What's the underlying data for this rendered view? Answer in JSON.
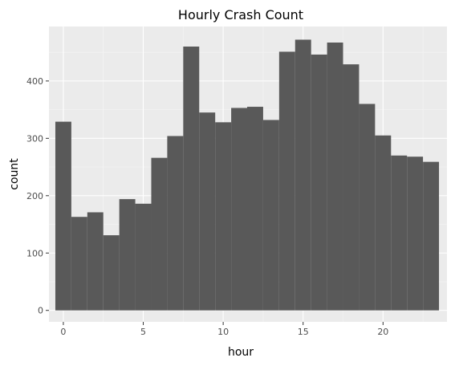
{
  "chart_data": {
    "type": "bar",
    "title": "Hourly Crash Count",
    "xlabel": "hour",
    "ylabel": "count",
    "x": [
      0,
      1,
      2,
      3,
      4,
      5,
      6,
      7,
      8,
      9,
      10,
      11,
      12,
      13,
      14,
      15,
      16,
      17,
      18,
      19,
      20,
      21,
      22,
      23
    ],
    "values": [
      329,
      163,
      171,
      131,
      194,
      186,
      266,
      304,
      460,
      345,
      328,
      353,
      355,
      332,
      451,
      472,
      446,
      467,
      429,
      360,
      305,
      270,
      268,
      259
    ],
    "xticks": [
      0,
      5,
      10,
      15,
      20
    ],
    "yticks": [
      0,
      100,
      200,
      300,
      400
    ],
    "xlim": [
      -0.9,
      24.0
    ],
    "ylim": [
      -20,
      495
    ],
    "grid": true,
    "legend": "none",
    "colors": {
      "bar": "#595959",
      "panel": "#ebebeb",
      "grid_major": "#ffffff",
      "grid_minor": "#f5f5f5",
      "tick": "#4d4d4d"
    }
  }
}
